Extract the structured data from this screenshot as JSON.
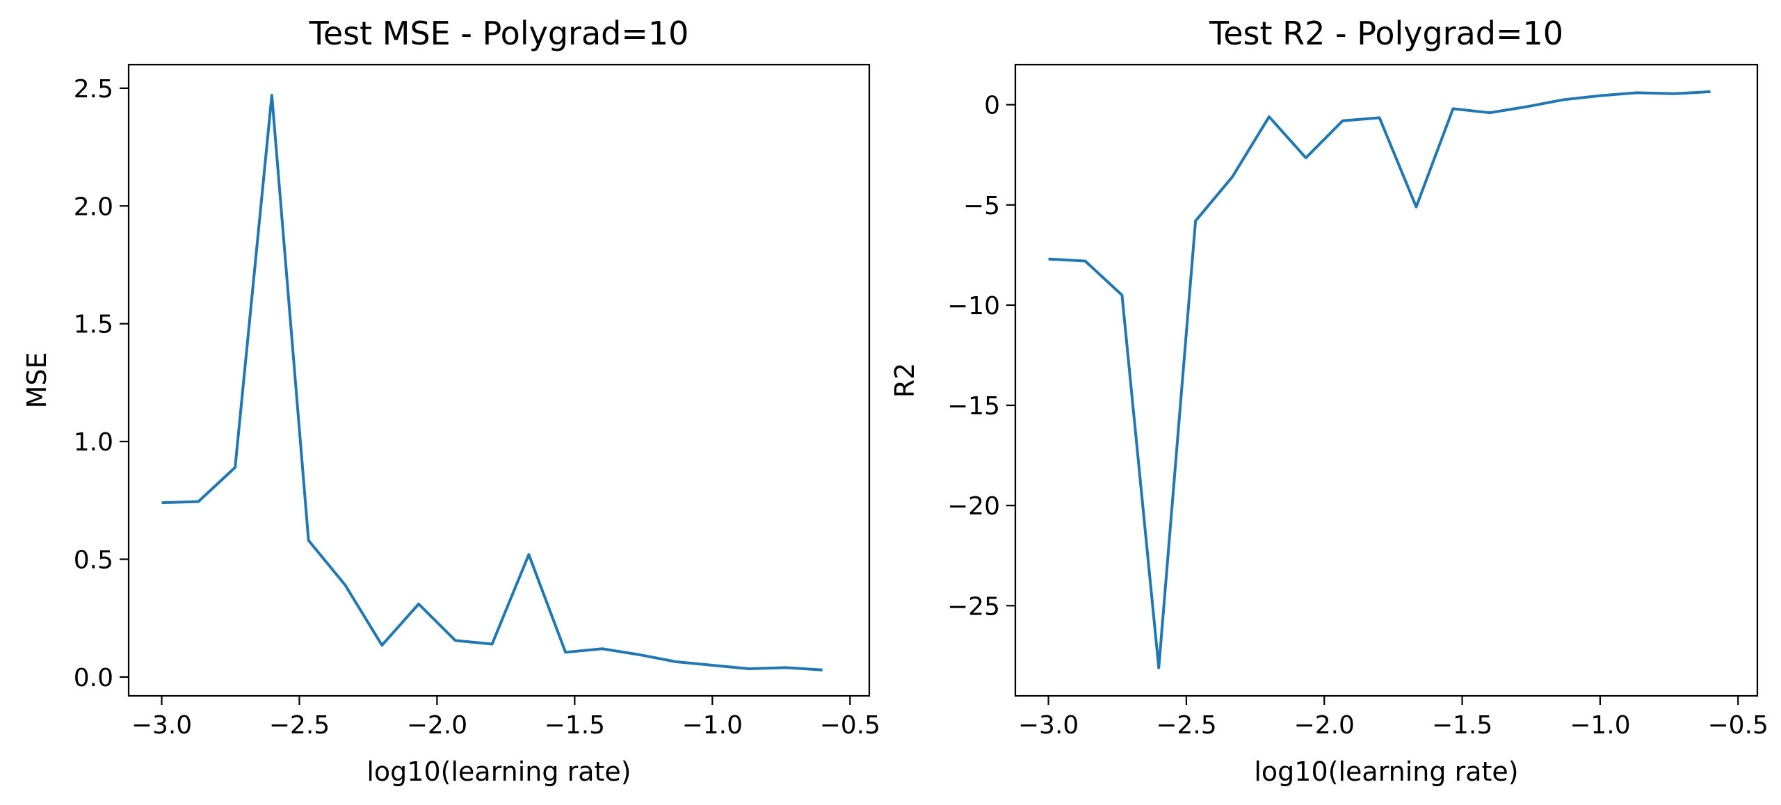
{
  "chart_data": [
    {
      "type": "line",
      "title": "Test MSE - Polygrad=10",
      "xlabel": "log10(learning rate)",
      "ylabel": "MSE",
      "xlim": [
        -3.12,
        -0.43
      ],
      "ylim": [
        -0.08,
        2.6
      ],
      "xticks": [
        -3.0,
        -2.5,
        -2.0,
        -1.5,
        -1.0,
        -0.5
      ],
      "xtick_labels": [
        "−3.0",
        "−2.5",
        "−2.0",
        "−1.5",
        "−1.0",
        "−0.5"
      ],
      "yticks": [
        0.0,
        0.5,
        1.0,
        1.5,
        2.0,
        2.5
      ],
      "ytick_labels": [
        "0.0",
        "0.5",
        "1.0",
        "1.5",
        "2.0",
        "2.5"
      ],
      "grid": false,
      "color": "#1f77b4",
      "series": [
        {
          "x": [
            -3.0,
            -2.8667,
            -2.7333,
            -2.6,
            -2.4667,
            -2.3333,
            -2.2,
            -2.0667,
            -1.9333,
            -1.8,
            -1.6667,
            -1.5333,
            -1.4,
            -1.2667,
            -1.1333,
            -1.0,
            -0.8667,
            -0.7333,
            -0.6
          ],
          "y": [
            0.74,
            0.745,
            0.89,
            2.47,
            0.58,
            0.39,
            0.135,
            0.31,
            0.155,
            0.14,
            0.52,
            0.105,
            0.12,
            0.095,
            0.065,
            0.05,
            0.035,
            0.04,
            0.03
          ]
        }
      ]
    },
    {
      "type": "line",
      "title": "Test R2 - Polygrad=10",
      "xlabel": "log10(learning rate)",
      "ylabel": "R2",
      "xlim": [
        -3.12,
        -0.43
      ],
      "ylim": [
        -29.5,
        2.0
      ],
      "xticks": [
        -3.0,
        -2.5,
        -2.0,
        -1.5,
        -1.0,
        -0.5
      ],
      "xtick_labels": [
        "−3.0",
        "−2.5",
        "−2.0",
        "−1.5",
        "−1.0",
        "−0.5"
      ],
      "yticks": [
        0,
        -5,
        -10,
        -15,
        -20,
        -25
      ],
      "ytick_labels": [
        "0",
        "−5",
        "−10",
        "−15",
        "−20",
        "−25"
      ],
      "grid": false,
      "color": "#1f77b4",
      "series": [
        {
          "x": [
            -3.0,
            -2.8667,
            -2.7333,
            -2.6,
            -2.4667,
            -2.3333,
            -2.2,
            -2.0667,
            -1.9333,
            -1.8,
            -1.6667,
            -1.5333,
            -1.4,
            -1.2667,
            -1.1333,
            -1.0,
            -0.8667,
            -0.7333,
            -0.6
          ],
          "y": [
            -7.7,
            -7.8,
            -9.5,
            -28.1,
            -5.8,
            -3.6,
            -0.6,
            -2.65,
            -0.8,
            -0.65,
            -5.1,
            -0.2,
            -0.4,
            -0.1,
            0.25,
            0.45,
            0.6,
            0.55,
            0.65
          ]
        }
      ]
    }
  ]
}
